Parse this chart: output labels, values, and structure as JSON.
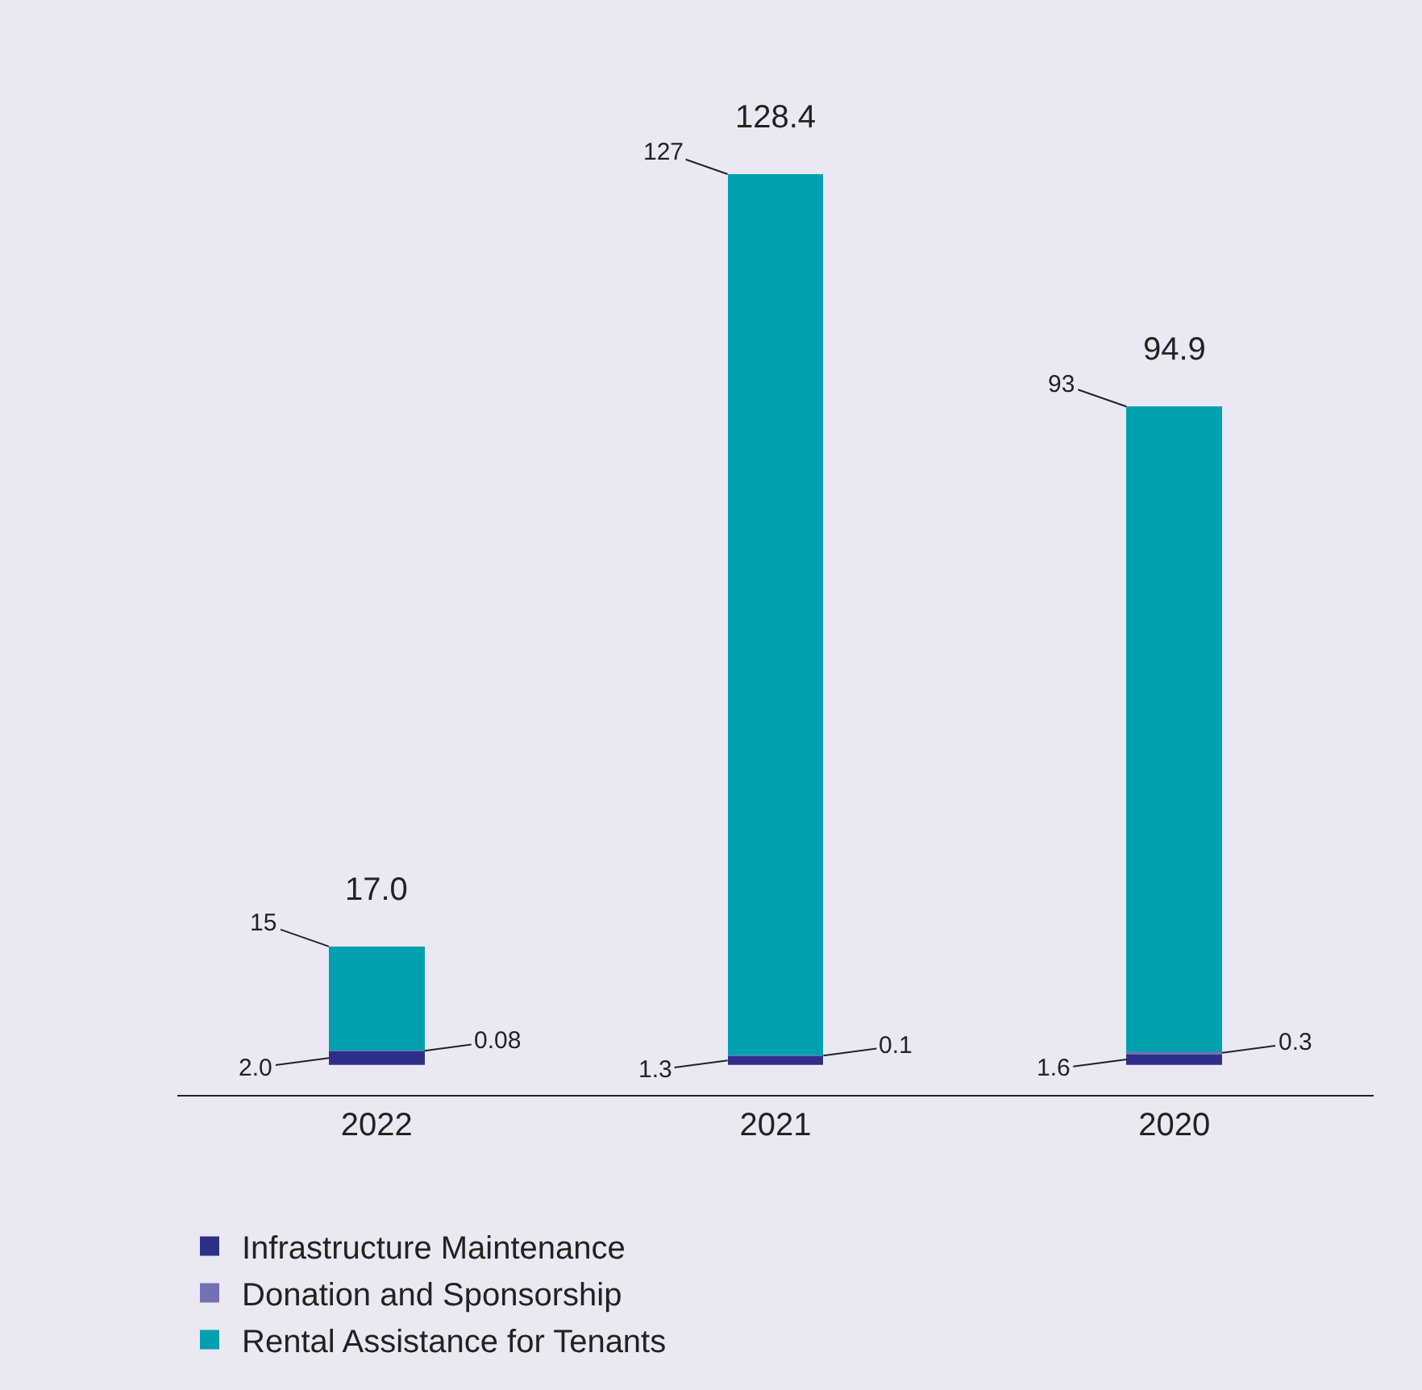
{
  "chart_data": {
    "type": "bar",
    "stacked": true,
    "categories": [
      "2022",
      "2021",
      "2020"
    ],
    "series": [
      {
        "name": "Infrastructure Maintenance",
        "color": "#2e3087",
        "values": [
          2.0,
          1.3,
          1.6
        ],
        "value_labels": [
          "2.0",
          "1.3",
          "1.6"
        ]
      },
      {
        "name": "Donation and Sponsorship",
        "color": "#7470b4",
        "values": [
          0.08,
          0.1,
          0.3
        ],
        "value_labels": [
          "0.08",
          "0.1",
          "0.3"
        ]
      },
      {
        "name": "Rental Assistance for Tenants",
        "color": "#00a0b0",
        "values": [
          15,
          127,
          93
        ],
        "value_labels": [
          "15",
          "127",
          "93"
        ]
      }
    ],
    "totals": [
      "17.0",
      "128.4",
      "94.9"
    ],
    "legend": "bottom",
    "grid": false
  }
}
